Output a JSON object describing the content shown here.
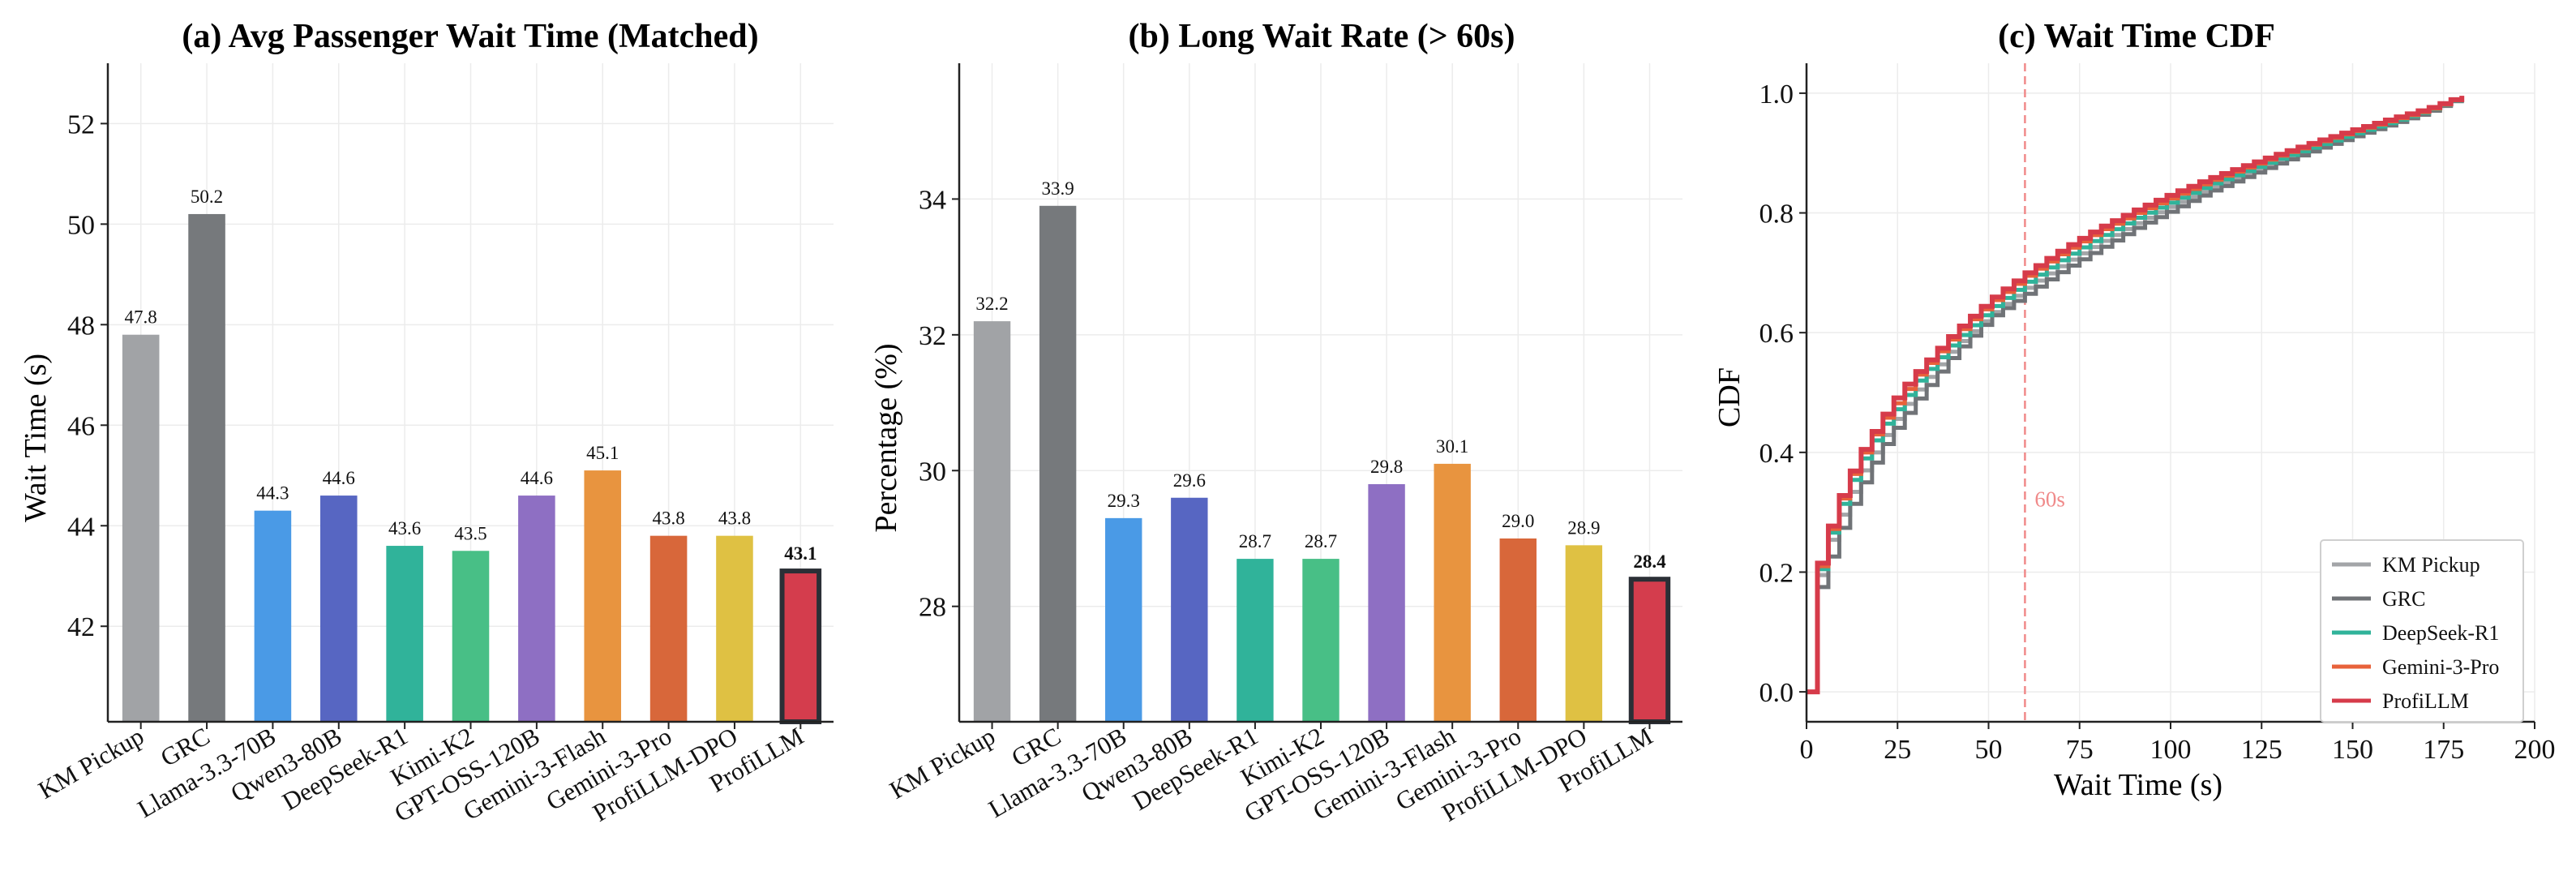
{
  "chart_data": [
    {
      "type": "bar",
      "title": "(a) Avg Passenger Wait Time (Matched)",
      "xlabel": "",
      "ylabel": "Wait Time (s)",
      "ylim": [
        40.1,
        53.2
      ],
      "yticks": [
        42,
        44,
        46,
        48,
        50,
        52
      ],
      "grid": true,
      "categories": [
        "KM Pickup",
        "GRC",
        "Llama-3.3-70B",
        "Qwen3-80B",
        "DeepSeek-R1",
        "Kimi-K2",
        "GPT-OSS-120B",
        "Gemini-3-Flash",
        "Gemini-3-Pro",
        "ProfiLLM-DPO",
        "ProfiLLM"
      ],
      "values": [
        47.8,
        50.2,
        44.3,
        44.6,
        43.6,
        43.5,
        44.6,
        45.1,
        43.8,
        43.8,
        43.1
      ],
      "labels": [
        "47.8",
        "50.2",
        "44.3",
        "44.6",
        "43.6",
        "43.5",
        "44.6",
        "45.1",
        "43.8",
        "43.8",
        "43.1"
      ],
      "colors": [
        "#a1a3a6",
        "#76797c",
        "#4a9ae6",
        "#5766c2",
        "#30b39a",
        "#48bf86",
        "#8e6fc3",
        "#e8943f",
        "#d8673a",
        "#dfc143",
        "#d43d4d"
      ],
      "highlight_index": 10
    },
    {
      "type": "bar",
      "title": "(b) Long Wait Rate (> 60s)",
      "xlabel": "",
      "ylabel": "Percentage (%)",
      "ylim": [
        26.3,
        36.0
      ],
      "yticks": [
        28,
        30,
        32,
        34
      ],
      "grid": true,
      "categories": [
        "KM Pickup",
        "GRC",
        "Llama-3.3-70B",
        "Qwen3-80B",
        "DeepSeek-R1",
        "Kimi-K2",
        "GPT-OSS-120B",
        "Gemini-3-Flash",
        "Gemini-3-Pro",
        "ProfiLLM-DPO",
        "ProfiLLM"
      ],
      "values": [
        32.2,
        33.9,
        29.3,
        29.6,
        28.7,
        28.7,
        29.8,
        30.1,
        29.0,
        28.9,
        28.4
      ],
      "labels": [
        "32.2",
        "33.9",
        "29.3",
        "29.6",
        "28.7",
        "28.7",
        "29.8",
        "30.1",
        "29.0",
        "28.9",
        "28.4"
      ],
      "colors": [
        "#a1a3a6",
        "#76797c",
        "#4a9ae6",
        "#5766c2",
        "#30b39a",
        "#48bf86",
        "#8e6fc3",
        "#e8943f",
        "#d8673a",
        "#dfc143",
        "#d43d4d"
      ],
      "highlight_index": 10
    },
    {
      "type": "line",
      "title": "(c) Wait Time CDF",
      "xlabel": "Wait Time (s)",
      "ylabel": "CDF",
      "xlim": [
        0,
        200
      ],
      "ylim": [
        -0.05,
        1.05
      ],
      "xticks": [
        0,
        25,
        50,
        75,
        100,
        125,
        150,
        175,
        200
      ],
      "yticks": [
        0.0,
        0.2,
        0.4,
        0.6,
        0.8,
        1.0
      ],
      "grid": true,
      "legend_position": "bottom-right",
      "annotation": {
        "text": "60s",
        "x": 60
      },
      "series": [
        {
          "name": "KM Pickup",
          "color": "#a3a5a8",
          "x": [
            0,
            1,
            5,
            10,
            15,
            20,
            25,
            30,
            40,
            50,
            60,
            70,
            80,
            90,
            100,
            110,
            120,
            130,
            140,
            150,
            160,
            170,
            182
          ],
          "y": [
            0,
            0.15,
            0.24,
            0.31,
            0.37,
            0.42,
            0.465,
            0.505,
            0.575,
            0.63,
            0.675,
            0.715,
            0.75,
            0.783,
            0.813,
            0.84,
            0.865,
            0.888,
            0.91,
            0.93,
            0.95,
            0.97,
            1.0
          ]
        },
        {
          "name": "GRC",
          "color": "#707377",
          "x": [
            0,
            1,
            5,
            10,
            15,
            20,
            25,
            30,
            40,
            50,
            60,
            70,
            80,
            90,
            100,
            110,
            120,
            130,
            140,
            150,
            160,
            170,
            182
          ],
          "y": [
            0,
            0.14,
            0.21,
            0.29,
            0.35,
            0.405,
            0.45,
            0.49,
            0.565,
            0.625,
            0.665,
            0.705,
            0.74,
            0.775,
            0.805,
            0.835,
            0.86,
            0.885,
            0.907,
            0.928,
            0.948,
            0.968,
            1.0
          ]
        },
        {
          "name": "DeepSeek-R1",
          "color": "#30b39a",
          "x": [
            0,
            1,
            5,
            10,
            15,
            20,
            25,
            30,
            40,
            50,
            60,
            70,
            80,
            90,
            100,
            110,
            120,
            130,
            140,
            150,
            160,
            170,
            182
          ],
          "y": [
            0,
            0.16,
            0.25,
            0.33,
            0.39,
            0.44,
            0.48,
            0.52,
            0.585,
            0.64,
            0.685,
            0.725,
            0.76,
            0.792,
            0.82,
            0.847,
            0.87,
            0.893,
            0.913,
            0.933,
            0.952,
            0.971,
            1.0
          ]
        },
        {
          "name": "Gemini-3-Pro",
          "color": "#e8623a",
          "x": [
            0,
            1,
            5,
            10,
            15,
            20,
            25,
            30,
            40,
            50,
            60,
            70,
            80,
            90,
            100,
            110,
            120,
            130,
            140,
            150,
            160,
            170,
            182
          ],
          "y": [
            0,
            0.165,
            0.255,
            0.34,
            0.4,
            0.45,
            0.49,
            0.53,
            0.595,
            0.65,
            0.695,
            0.735,
            0.77,
            0.8,
            0.827,
            0.853,
            0.876,
            0.898,
            0.918,
            0.937,
            0.955,
            0.972,
            1.0
          ]
        },
        {
          "name": "ProfiLLM",
          "color": "#d63b4a",
          "x": [
            0,
            1,
            5,
            10,
            15,
            20,
            25,
            30,
            40,
            50,
            60,
            70,
            80,
            90,
            100,
            110,
            120,
            130,
            140,
            150,
            160,
            170,
            182
          ],
          "y": [
            0,
            0.17,
            0.26,
            0.345,
            0.405,
            0.455,
            0.5,
            0.535,
            0.6,
            0.655,
            0.7,
            0.74,
            0.775,
            0.805,
            0.832,
            0.857,
            0.879,
            0.9,
            0.92,
            0.939,
            0.957,
            0.974,
            1.0
          ]
        }
      ]
    }
  ]
}
